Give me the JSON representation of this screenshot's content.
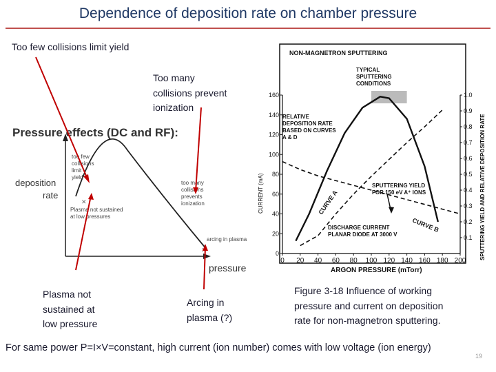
{
  "slide": {
    "title": "Dependence of deposition rate on chamber pressure",
    "page_number": "19",
    "footer": "For same power P=I×V=constant, high current (ion number) comes with low voltage (ion energy)"
  },
  "callouts": {
    "few_collisions": "Too few collisions limit yield",
    "many_collisions": [
      "Too many",
      "collisions prevent",
      "ionization"
    ],
    "not_sustained": [
      "Plasma not",
      "sustained at",
      "low pressure"
    ],
    "arcing": [
      "Arcing in",
      "plasma (?)"
    ]
  },
  "left_figure": {
    "heading": "Pressure effects (DC and RF):",
    "y_label": [
      "deposition",
      "rate"
    ],
    "x_label": "pressure",
    "notes": {
      "few": [
        "too few",
        "collisions",
        "limit",
        "yield"
      ],
      "many": [
        "too many",
        "collisions",
        "prevents",
        "ionization"
      ],
      "not_sustained": [
        "Plasma not sustained",
        "at low pressures"
      ],
      "arcing": "arcing in plasma"
    }
  },
  "right_figure": {
    "title": "NON-MAGNETRON SPUTTERING",
    "typical": [
      "TYPICAL",
      "SPUTTERING",
      "CONDITIONS"
    ],
    "relative": [
      "RELATIVE",
      "DEPOSITION RATE",
      "BASED ON CURVES",
      "A & D"
    ],
    "sputter_yield": [
      "SPUTTERING YIELD",
      "FOR 150 eV A⁺ IONS"
    ],
    "discharge": [
      "DISCHARGE CURRENT",
      "PLANAR DIODE AT 3000 V"
    ],
    "curve_a": "CURVE A",
    "curve_b": "CURVE B",
    "left_axis_label": "CURRENT (mA)",
    "right_axis_label": "SPUTTERING YIELD AND RELATIVE DEPOSITION RATE",
    "x_axis_label": "ARGON PRESSURE (mTorr)",
    "x_ticks": [
      "0",
      "20",
      "40",
      "60",
      "80",
      "100",
      "120",
      "140",
      "160",
      "180",
      "200"
    ],
    "current_ticks": [
      "0",
      "20",
      "40",
      "60",
      "80",
      "100",
      "120",
      "140",
      "160"
    ],
    "yield_ticks": [
      "0.1",
      "0.2",
      "0.3",
      "0.4",
      "0.5",
      "0.6",
      "0.7",
      "0.8",
      "0.9",
      "1.0"
    ],
    "caption": [
      "Figure 3-18 Influence of working",
      "pressure and current on deposition",
      "rate for non-magnetron sputtering."
    ]
  },
  "chart_data": {
    "type": "line",
    "title": "NON-MAGNETRON SPUTTERING",
    "xlabel": "ARGON PRESSURE (mTorr)",
    "ylabel": "CURRENT (mA)",
    "y2label": "SPUTTERING YIELD AND RELATIVE DEPOSITION RATE",
    "xlim": [
      0,
      200
    ],
    "ylim": [
      0,
      160
    ],
    "y2lim": [
      0,
      1.0
    ],
    "series": [
      {
        "name": "RELATIVE DEPOSITION RATE",
        "axis": "y2",
        "x": [
          15,
          30,
          50,
          70,
          90,
          110,
          120,
          140,
          160,
          175
        ],
        "values": [
          0.08,
          0.25,
          0.52,
          0.76,
          0.92,
          0.99,
          0.98,
          0.85,
          0.55,
          0.2
        ]
      },
      {
        "name": "CURVE A",
        "axis": "y",
        "x": [
          20,
          40,
          60,
          80,
          100,
          120,
          140,
          160,
          180
        ],
        "values": [
          8,
          18,
          40,
          60,
          78,
          95,
          112,
          128,
          145
        ]
      },
      {
        "name": "CURVE B",
        "axis": "y2",
        "x": [
          0,
          20,
          40,
          60,
          80,
          100,
          120,
          140,
          160,
          180,
          200
        ],
        "values": [
          0.58,
          0.53,
          0.49,
          0.46,
          0.43,
          0.4,
          0.37,
          0.34,
          0.31,
          0.28,
          0.25
        ]
      }
    ]
  }
}
